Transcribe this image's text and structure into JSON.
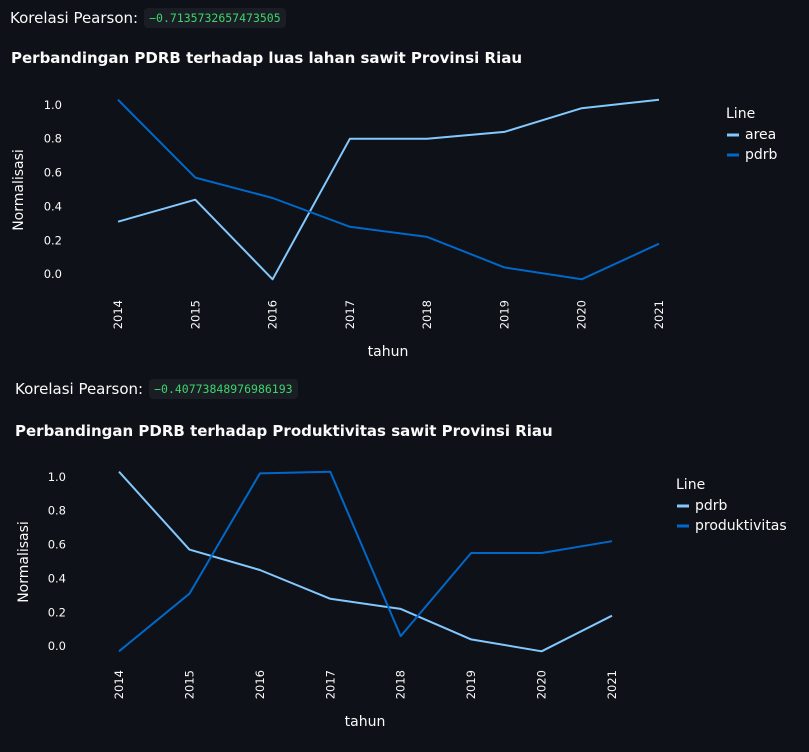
{
  "corr1": {
    "label": "Korelasi Pearson:",
    "value": "−0.7135732657473505"
  },
  "corr2": {
    "label": "Korelasi Pearson:",
    "value": "−0.40773848976986193"
  },
  "colors": {
    "light_blue": "#83c9ff",
    "dark_blue": "#0068c9",
    "background": "#0e1117"
  },
  "chart_data": [
    {
      "type": "line",
      "title": "Perbandingan PDRB terhadap luas lahan sawit Provinsi Riau",
      "xlabel": "tahun",
      "ylabel": "Normalisasi",
      "legend_title": "Line",
      "legend_position": "right",
      "categories": [
        "2014",
        "2015",
        "2016",
        "2017",
        "2018",
        "2019",
        "2020",
        "2021"
      ],
      "yticks": [
        "1.0",
        "0.8",
        "0.6",
        "0.4",
        "0.2",
        "0.0"
      ],
      "ylim": [
        -0.04,
        1.04
      ],
      "series": [
        {
          "name": "area",
          "color": "#83c9ff",
          "values": [
            0.31,
            0.44,
            -0.03,
            0.8,
            0.8,
            0.84,
            0.98,
            1.03
          ]
        },
        {
          "name": "pdrb",
          "color": "#0068c9",
          "values": [
            1.03,
            0.57,
            0.45,
            0.28,
            0.22,
            0.04,
            -0.03,
            0.18
          ]
        }
      ]
    },
    {
      "type": "line",
      "title": "Perbandingan PDRB terhadap Produktivitas sawit Provinsi Riau",
      "xlabel": "tahun",
      "ylabel": "Normalisasi",
      "legend_title": "Line",
      "legend_position": "right",
      "categories": [
        "2014",
        "2015",
        "2016",
        "2017",
        "2018",
        "2019",
        "2020",
        "2021"
      ],
      "yticks": [
        "1.0",
        "0.8",
        "0.6",
        "0.4",
        "0.2",
        "0.0"
      ],
      "ylim": [
        -0.04,
        1.04
      ],
      "series": [
        {
          "name": "pdrb",
          "color": "#83c9ff",
          "values": [
            1.03,
            0.57,
            0.45,
            0.28,
            0.22,
            0.04,
            -0.03,
            0.18
          ]
        },
        {
          "name": "produktivitas",
          "color": "#0068c9",
          "values": [
            -0.03,
            0.31,
            1.02,
            1.03,
            0.06,
            0.55,
            0.55,
            0.62
          ]
        }
      ]
    }
  ]
}
